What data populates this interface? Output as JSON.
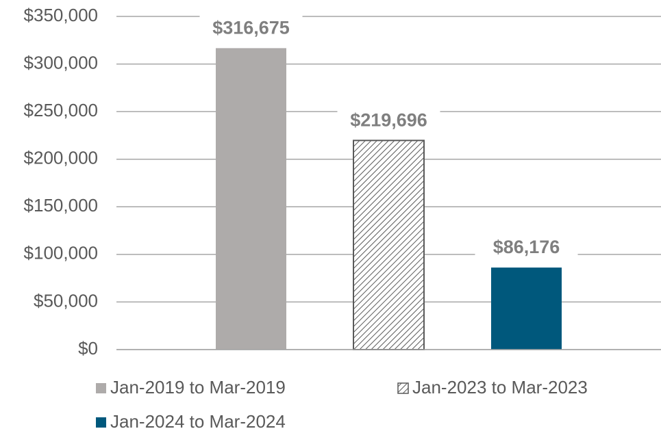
{
  "chart_data": {
    "type": "bar",
    "categories": [
      null
    ],
    "series": [
      {
        "name": "Jan-2019 to Mar-2019",
        "color": "#aeabaa",
        "values": [
          316675
        ],
        "value_labels": [
          "$316,675"
        ]
      },
      {
        "name": "Jan-2023 to Mar-2023",
        "color": "#595959",
        "pattern": "hatch",
        "values": [
          219696
        ],
        "value_labels": [
          "$219,696"
        ]
      },
      {
        "name": "Jan-2024 to Mar-2024",
        "color": "#00587c",
        "values": [
          86176
        ],
        "value_labels": [
          "$86,176"
        ]
      }
    ],
    "ylim": [
      0,
      350000
    ],
    "yticks": [
      {
        "value": 0,
        "label": "$0"
      },
      {
        "value": 50000,
        "label": "$50,000"
      },
      {
        "value": 100000,
        "label": "$100,000"
      },
      {
        "value": 150000,
        "label": "$150,000"
      },
      {
        "value": 200000,
        "label": "$200,000"
      },
      {
        "value": 250000,
        "label": "$250,000"
      },
      {
        "value": 300000,
        "label": "$300,000"
      },
      {
        "value": 350000,
        "label": "$350,000"
      }
    ],
    "grid": true,
    "legend": "bottom"
  }
}
